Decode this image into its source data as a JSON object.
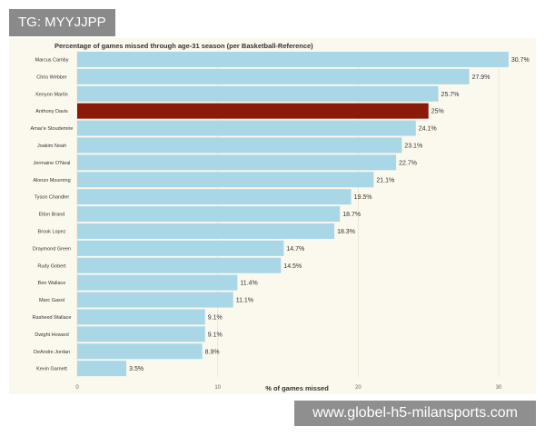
{
  "overlay": {
    "tag_text": "TG: MYYJJPP",
    "watermark_text": "www.globel-h5-milansports.com"
  },
  "colors": {
    "panel_bg": "#fbf8ee",
    "bar": "#a9d7e6",
    "highlight_bar": "#8b1a0a",
    "grid": "#ece6d6",
    "text": "#333333"
  },
  "chart_data": {
    "type": "bar",
    "orientation": "horizontal",
    "title": "Percentage of games missed through age-31 season (per Basketball-Reference)",
    "xlabel": "% of games missed",
    "ylabel": "",
    "xlim": [
      0,
      32
    ],
    "x_ticks": [
      0,
      10,
      20,
      30
    ],
    "highlight": "Anthony Davis",
    "categories": [
      "Marcus Camby",
      "Chris Webber",
      "Kenyon Martin",
      "Anthony Davis",
      "Amar'e Stoudemire",
      "Joakim Noah",
      "Jermaine O'Neal",
      "Alonzo Mourning",
      "Tyson Chandler",
      "Elton Brand",
      "Brook Lopez",
      "Draymond Green",
      "Rudy Gobert",
      "Ben Wallace",
      "Marc Gasol",
      "Rasheed Wallace",
      "Dwight Howard",
      "DeAndre Jordan",
      "Kevin Garnett"
    ],
    "values": [
      30.7,
      27.9,
      25.7,
      25,
      24.1,
      23.1,
      22.7,
      21.1,
      19.5,
      18.7,
      18.3,
      14.7,
      14.5,
      11.4,
      11.1,
      9.1,
      9.1,
      8.9,
      3.5
    ],
    "value_labels": [
      "30.7%",
      "27.9%",
      "25.7%",
      "25%",
      "24.1%",
      "23.1%",
      "22.7%",
      "21.1%",
      "19.5%",
      "18.7%",
      "18.3%",
      "14.7%",
      "14.5%",
      "11.4%",
      "11.1%",
      "9.1%",
      "9.1%",
      "8.9%",
      "3.5%"
    ]
  }
}
